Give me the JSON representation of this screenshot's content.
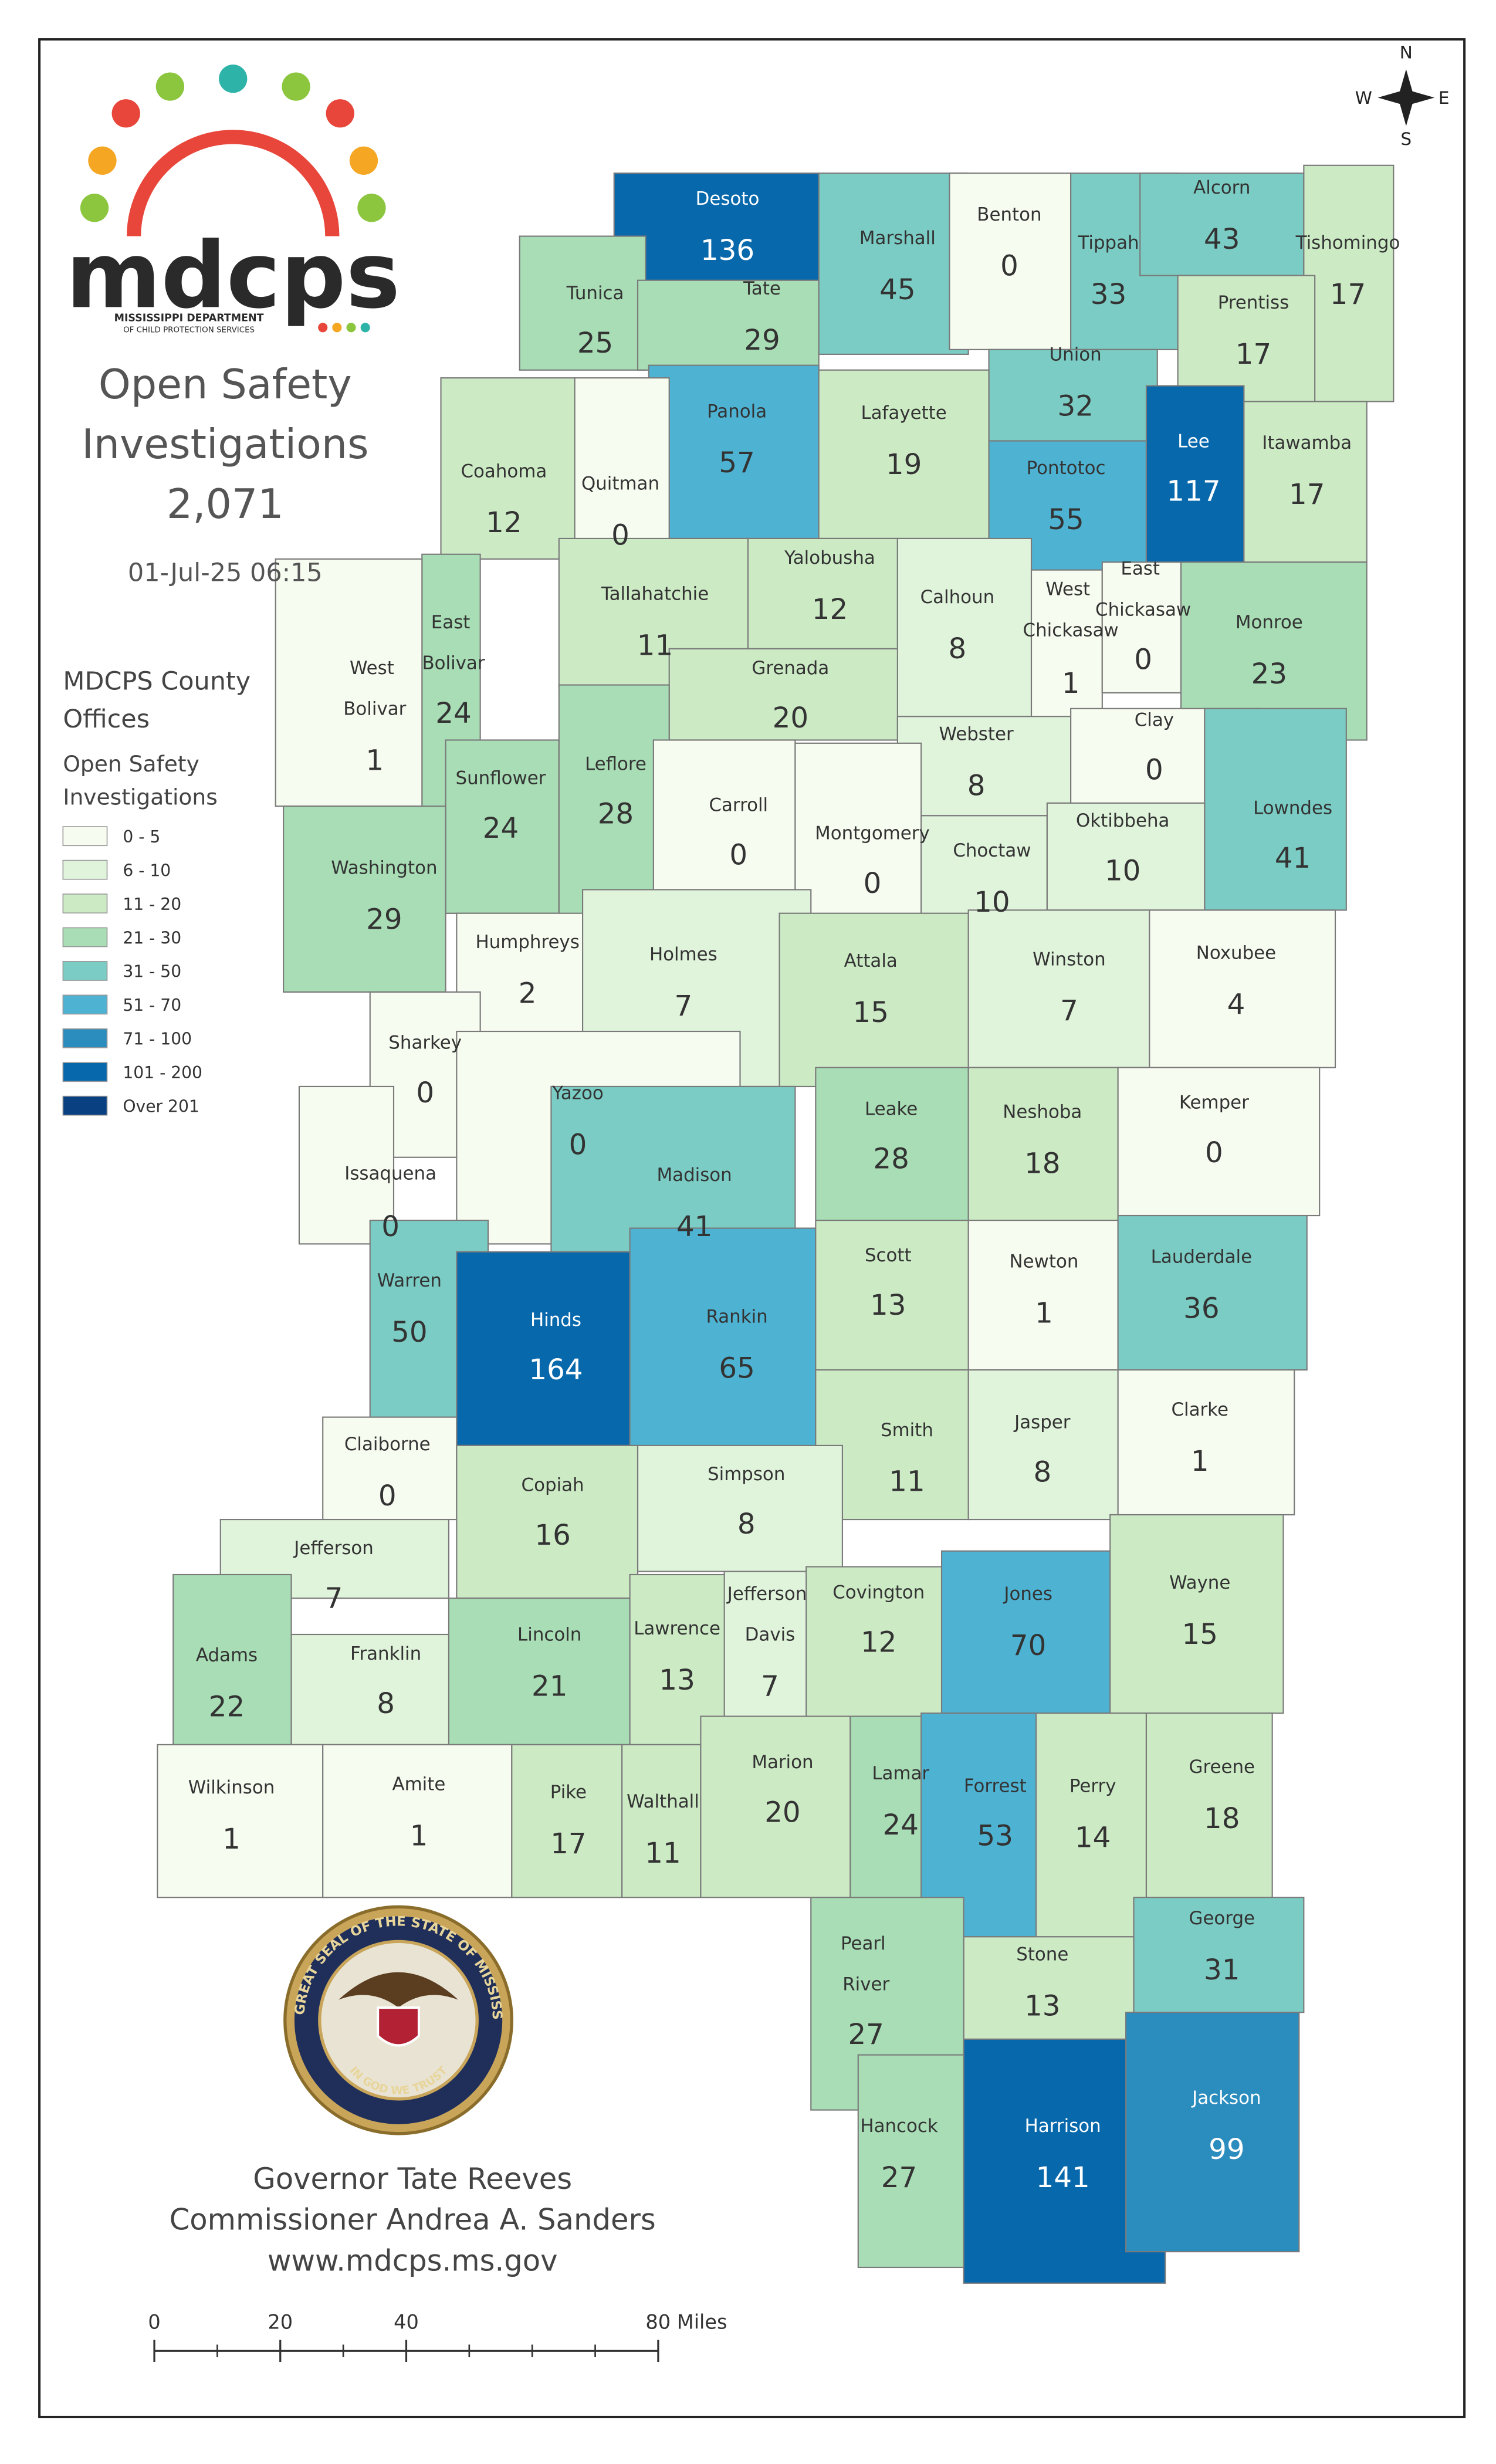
{
  "header": {
    "logo_text": "mdcps",
    "logo_subtitle_1": "MISSISSIPPI DEPARTMENT",
    "logo_subtitle_2": "OF CHILD PROTECTION SERVICES",
    "title": "Open Safety Investigations",
    "total": "2,071",
    "timestamp": "01-Jul-25 06:15"
  },
  "legend": {
    "title_1": "MDCPS County Offices",
    "title_2": "Open Safety Investigations",
    "bins": [
      {
        "label": "0 - 5",
        "min": 0,
        "color": "#f7fcf0"
      },
      {
        "label": "6 - 10",
        "min": 6,
        "color": "#e0f3db"
      },
      {
        "label": "11 - 20",
        "min": 11,
        "color": "#ccebc5"
      },
      {
        "label": "21 - 30",
        "min": 21,
        "color": "#a8ddb5"
      },
      {
        "label": "31 - 50",
        "min": 31,
        "color": "#7bccc4"
      },
      {
        "label": "51 - 70",
        "min": 51,
        "color": "#4eb3d3"
      },
      {
        "label": "71 - 100",
        "min": 71,
        "color": "#2b8cbe"
      },
      {
        "label": "101 - 200",
        "min": 101,
        "color": "#0868ac"
      },
      {
        "label": "Over 201",
        "min": 201,
        "color": "#084081"
      }
    ]
  },
  "counties": [
    {
      "name": "Desoto",
      "count": 136
    },
    {
      "name": "Tunica",
      "count": 25
    },
    {
      "name": "Tate",
      "count": 29
    },
    {
      "name": "Marshall",
      "count": 45
    },
    {
      "name": "Benton",
      "count": 0
    },
    {
      "name": "Tippah",
      "count": 33
    },
    {
      "name": "Alcorn",
      "count": 43
    },
    {
      "name": "Tishomingo",
      "count": 17
    },
    {
      "name": "Prentiss",
      "count": 17
    },
    {
      "name": "Union",
      "count": 32
    },
    {
      "name": "Panola",
      "count": 57
    },
    {
      "name": "Lafayette",
      "count": 19
    },
    {
      "name": "Coahoma",
      "count": 12
    },
    {
      "name": "Quitman",
      "count": 0
    },
    {
      "name": "Pontotoc",
      "count": 55
    },
    {
      "name": "Lee",
      "count": 117
    },
    {
      "name": "Itawamba",
      "count": 17
    },
    {
      "name": "Yalobusha",
      "count": 12
    },
    {
      "name": "Tallahatchie",
      "count": 11
    },
    {
      "name": "Calhoun",
      "count": 8
    },
    {
      "name": "West Chickasaw",
      "count": 1
    },
    {
      "name": "East Chickasaw",
      "count": 0
    },
    {
      "name": "Monroe",
      "count": 23
    },
    {
      "name": "East Bolivar",
      "count": 24
    },
    {
      "name": "West Bolivar",
      "count": 1
    },
    {
      "name": "Grenada",
      "count": 20
    },
    {
      "name": "Sunflower",
      "count": 24
    },
    {
      "name": "Leflore",
      "count": 28
    },
    {
      "name": "Webster",
      "count": 8
    },
    {
      "name": "Clay",
      "count": 0
    },
    {
      "name": "Lowndes",
      "count": 41
    },
    {
      "name": "Carroll",
      "count": 0
    },
    {
      "name": "Montgomery",
      "count": 0
    },
    {
      "name": "Choctaw",
      "count": 10
    },
    {
      "name": "Oktibbeha",
      "count": 10
    },
    {
      "name": "Washington",
      "count": 29
    },
    {
      "name": "Humphreys",
      "count": 2
    },
    {
      "name": "Holmes",
      "count": 7
    },
    {
      "name": "Attala",
      "count": 15
    },
    {
      "name": "Winston",
      "count": 7
    },
    {
      "name": "Noxubee",
      "count": 4
    },
    {
      "name": "Sharkey",
      "count": 0
    },
    {
      "name": "Yazoo",
      "count": 0
    },
    {
      "name": "Issaquena",
      "count": 0
    },
    {
      "name": "Leake",
      "count": 28
    },
    {
      "name": "Neshoba",
      "count": 18
    },
    {
      "name": "Kemper",
      "count": 0
    },
    {
      "name": "Madison",
      "count": 41
    },
    {
      "name": "Warren",
      "count": 50
    },
    {
      "name": "Hinds",
      "count": 164
    },
    {
      "name": "Rankin",
      "count": 65
    },
    {
      "name": "Scott",
      "count": 13
    },
    {
      "name": "Newton",
      "count": 1
    },
    {
      "name": "Lauderdale",
      "count": 36
    },
    {
      "name": "Claiborne",
      "count": 0
    },
    {
      "name": "Smith",
      "count": 11
    },
    {
      "name": "Jasper",
      "count": 8
    },
    {
      "name": "Clarke",
      "count": 1
    },
    {
      "name": "Copiah",
      "count": 16
    },
    {
      "name": "Simpson",
      "count": 8
    },
    {
      "name": "Jefferson",
      "count": 7
    },
    {
      "name": "Adams",
      "count": 22
    },
    {
      "name": "Franklin",
      "count": 8
    },
    {
      "name": "Lincoln",
      "count": 21
    },
    {
      "name": "Lawrence",
      "count": 13
    },
    {
      "name": "Jefferson Davis",
      "count": 7
    },
    {
      "name": "Covington",
      "count": 12
    },
    {
      "name": "Jones",
      "count": 70
    },
    {
      "name": "Wayne",
      "count": 15
    },
    {
      "name": "Wilkinson",
      "count": 1
    },
    {
      "name": "Amite",
      "count": 1
    },
    {
      "name": "Pike",
      "count": 17
    },
    {
      "name": "Walthall",
      "count": 11
    },
    {
      "name": "Marion",
      "count": 20
    },
    {
      "name": "Lamar",
      "count": 24
    },
    {
      "name": "Forrest",
      "count": 53
    },
    {
      "name": "Perry",
      "count": 14
    },
    {
      "name": "Greene",
      "count": 18
    },
    {
      "name": "George",
      "count": 31
    },
    {
      "name": "Stone",
      "count": 13
    },
    {
      "name": "Pearl River",
      "count": 27
    },
    {
      "name": "Hancock",
      "count": 27
    },
    {
      "name": "Harrison",
      "count": 141
    },
    {
      "name": "Jackson",
      "count": 99
    }
  ],
  "seal": {
    "outer_text": "THE GREAT SEAL OF THE STATE OF MISSISSIPPI",
    "inner_text": "IN GOD WE TRUST"
  },
  "footer": {
    "lines": [
      "Governor Tate Reeves",
      "Commissioner Andrea A. Sanders",
      "www.mdcps.ms.gov"
    ]
  },
  "scale_bar": {
    "lim": [
      0,
      80
    ],
    "ticks": [
      0,
      20,
      40,
      {
        "value": 80,
        "label": "80 Miles"
      }
    ]
  },
  "compass": {
    "n": "N",
    "e": "E",
    "s": "S",
    "w": "W"
  }
}
